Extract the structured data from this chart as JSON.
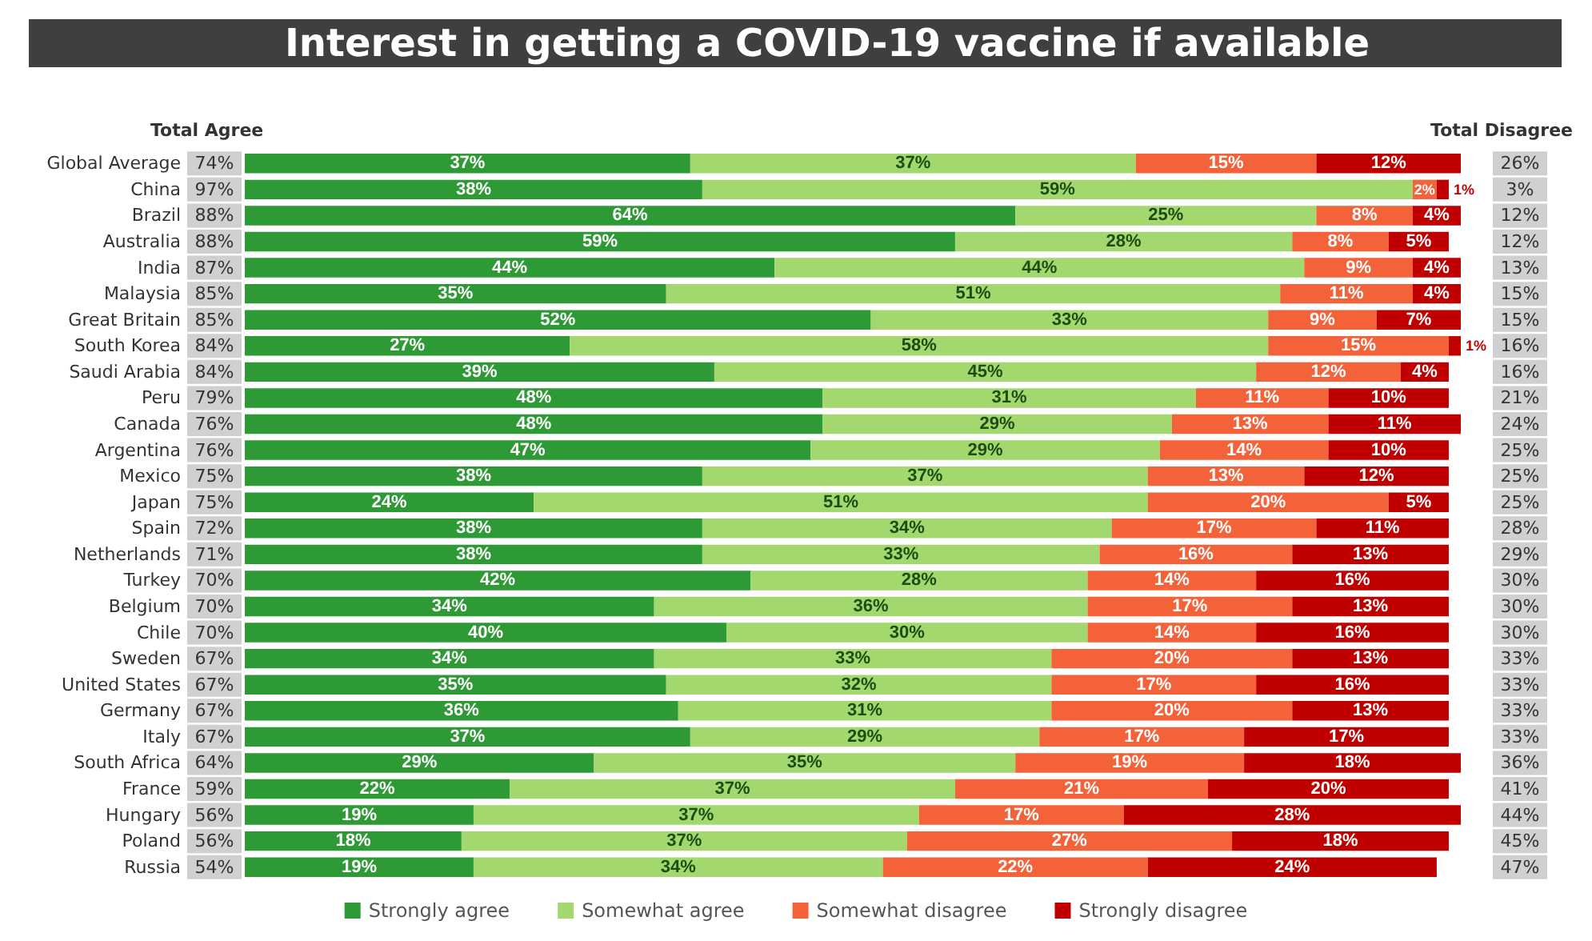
{
  "chart_data": {
    "type": "bar",
    "orientation": "horizontal",
    "stacked": true,
    "title": "Interest in getting a COVID-19 vaccine if available",
    "categories": [
      "Global Average",
      "China",
      "Brazil",
      "Australia",
      "India",
      "Malaysia",
      "Great Britain",
      "South Korea",
      "Saudi Arabia",
      "Peru",
      "Canada",
      "Argentina",
      "Mexico",
      "Japan",
      "Spain",
      "Netherlands",
      "Turkey",
      "Belgium",
      "Chile",
      "Sweden",
      "United States",
      "Germany",
      "Italy",
      "South Africa",
      "France",
      "Hungary",
      "Poland",
      "Russia"
    ],
    "series": [
      {
        "name": "Strongly agree",
        "color": "#2e9a35",
        "values": [
          37,
          38,
          64,
          59,
          44,
          35,
          52,
          27,
          39,
          48,
          48,
          47,
          38,
          24,
          38,
          38,
          42,
          34,
          40,
          34,
          35,
          36,
          37,
          29,
          22,
          19,
          18,
          19
        ],
        "value_labels": [
          "37%",
          "38%",
          "64%",
          "59%",
          "44%",
          "35%",
          "52%",
          "27%",
          "39%",
          "48%",
          "48%",
          "47%",
          "38%",
          "24%",
          "38%",
          "38%",
          "42%",
          "34%",
          "40%",
          "34%",
          "35%",
          "36%",
          "37%",
          "29%",
          "22%",
          "19%",
          "18%",
          "19%"
        ]
      },
      {
        "name": "Somewhat agree",
        "color": "#a3d86e",
        "values": [
          37,
          59,
          25,
          28,
          44,
          51,
          33,
          58,
          45,
          31,
          29,
          29,
          37,
          51,
          34,
          33,
          28,
          36,
          30,
          33,
          32,
          31,
          29,
          35,
          37,
          37,
          37,
          34
        ],
        "value_labels": [
          "37%",
          "59%",
          "25%",
          "28%",
          "44%",
          "51%",
          "33%",
          "58%",
          "45%",
          "31%",
          "29%",
          "29%",
          "37%",
          "51%",
          "34%",
          "33%",
          "28%",
          "36%",
          "30%",
          "33%",
          "32%",
          "31%",
          "29%",
          "35%",
          "37%",
          "37%",
          "37%",
          "34%"
        ]
      },
      {
        "name": "Somewhat disagree",
        "color": "#f4623a",
        "values": [
          15,
          2,
          8,
          8,
          9,
          11,
          9,
          15,
          12,
          11,
          13,
          14,
          13,
          20,
          17,
          16,
          14,
          17,
          14,
          20,
          17,
          20,
          17,
          19,
          21,
          17,
          27,
          22
        ],
        "value_labels": [
          "15%",
          "2%",
          "8%",
          "8%",
          "9%",
          "11%",
          "9%",
          "15%",
          "12%",
          "11%",
          "13%",
          "14%",
          "13%",
          "20%",
          "17%",
          "16%",
          "14%",
          "17%",
          "14%",
          "20%",
          "17%",
          "20%",
          "17%",
          "19%",
          "21%",
          "17%",
          "27%",
          "22%"
        ]
      },
      {
        "name": "Strongly disagree",
        "color": "#c00000",
        "values": [
          12,
          1,
          4,
          5,
          4,
          4,
          7,
          1,
          4,
          10,
          11,
          10,
          12,
          5,
          11,
          13,
          16,
          13,
          16,
          13,
          16,
          13,
          17,
          18,
          20,
          28,
          18,
          24
        ],
        "value_labels": [
          "12%",
          "1%",
          "4%",
          "5%",
          "4%",
          "4%",
          "7%",
          "1%",
          "4%",
          "10%",
          "11%",
          "10%",
          "12%",
          "5%",
          "11%",
          "13%",
          "16%",
          "13%",
          "16%",
          "13%",
          "16%",
          "13%",
          "17%",
          "18%",
          "20%",
          "28%",
          "18%",
          "24%"
        ]
      }
    ],
    "totals": [
      [
        "74%",
        "26%"
      ],
      [
        "97%",
        "3%"
      ],
      [
        "88%",
        "12%"
      ],
      [
        "88%",
        "12%"
      ],
      [
        "87%",
        "13%"
      ],
      [
        "85%",
        "15%"
      ],
      [
        "85%",
        "15%"
      ],
      [
        "84%",
        "16%"
      ],
      [
        "84%",
        "16%"
      ],
      [
        "79%",
        "21%"
      ],
      [
        "76%",
        "24%"
      ],
      [
        "76%",
        "25%"
      ],
      [
        "75%",
        "25%"
      ],
      [
        "75%",
        "25%"
      ],
      [
        "72%",
        "28%"
      ],
      [
        "71%",
        "29%"
      ],
      [
        "70%",
        "30%"
      ],
      [
        "70%",
        "30%"
      ],
      [
        "70%",
        "30%"
      ],
      [
        "67%",
        "33%"
      ],
      [
        "67%",
        "33%"
      ],
      [
        "67%",
        "33%"
      ],
      [
        "67%",
        "33%"
      ],
      [
        "64%",
        "36%"
      ],
      [
        "59%",
        "41%"
      ],
      [
        "56%",
        "44%"
      ],
      [
        "56%",
        "45%"
      ],
      [
        "54%",
        "47%"
      ]
    ],
    "annotations": [
      "Total Agree",
      "Total Disagree"
    ],
    "legend": "bottom",
    "tick_labels": "y"
  }
}
